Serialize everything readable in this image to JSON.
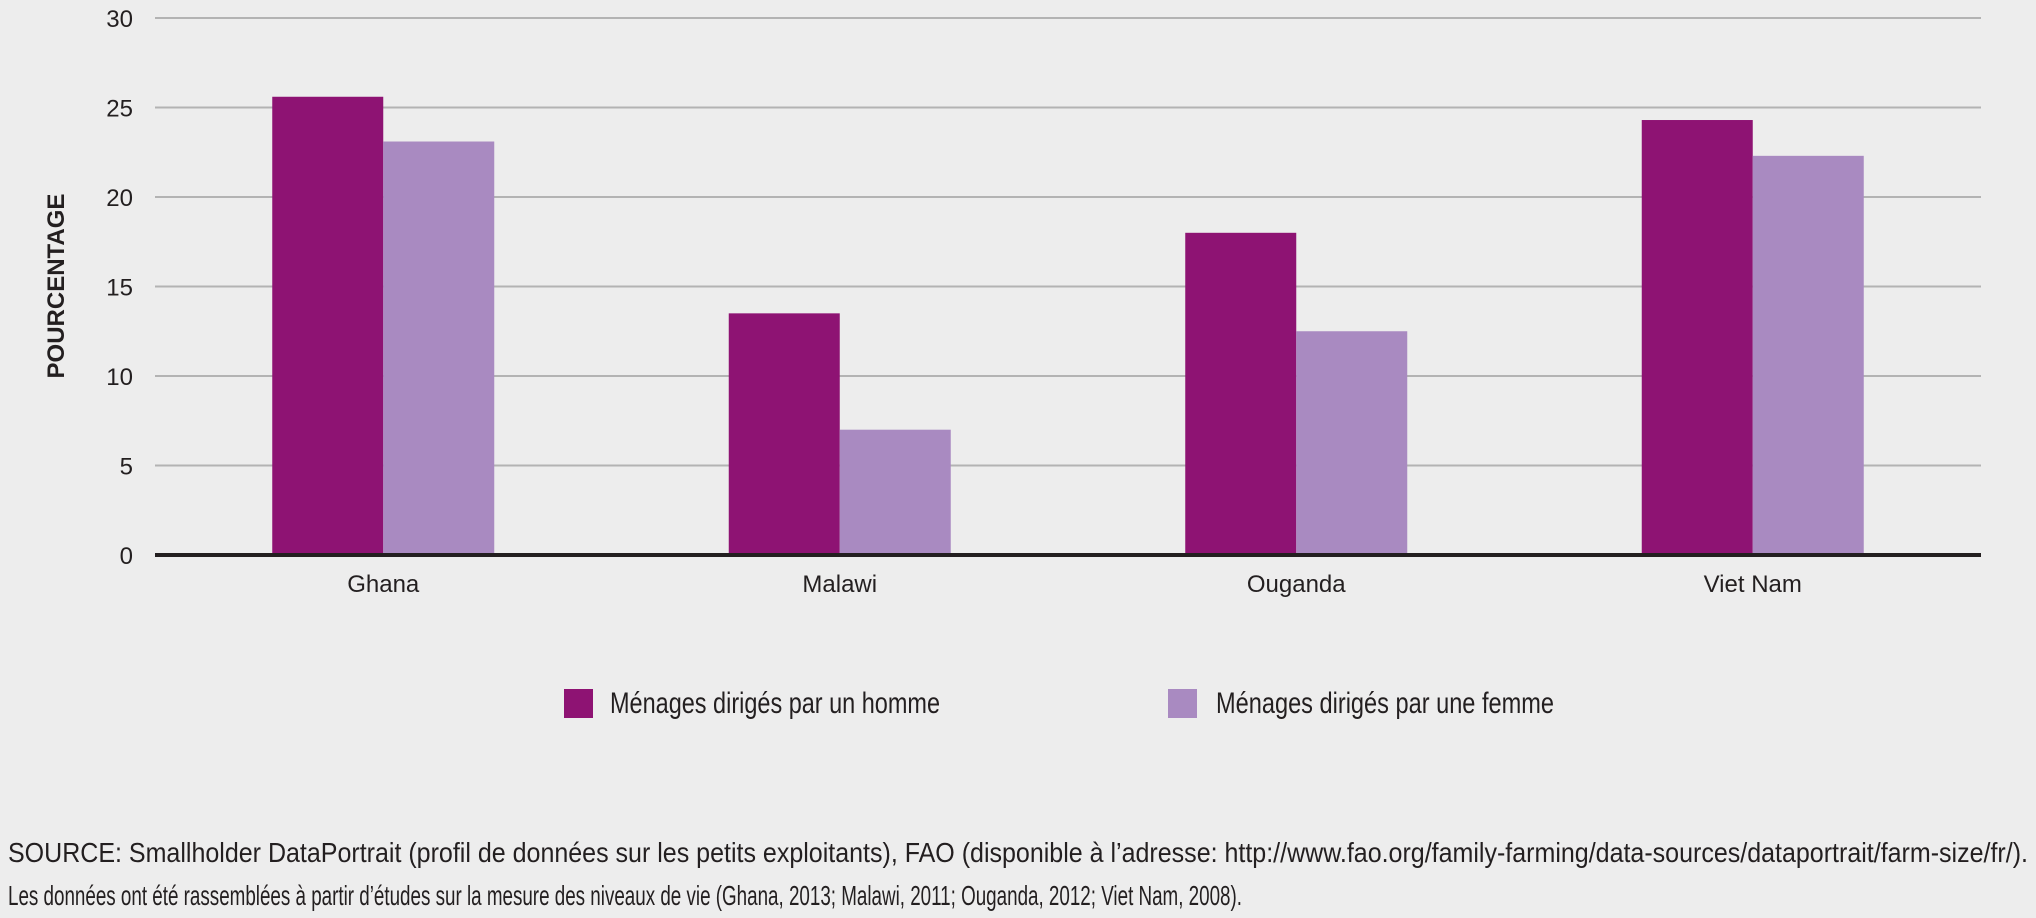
{
  "chart_data": {
    "type": "bar",
    "title": "",
    "xlabel": "",
    "ylabel": "POURCENTAGE",
    "ylim": [
      0,
      30
    ],
    "yticks": [
      0,
      5,
      10,
      15,
      20,
      25,
      30
    ],
    "grid": true,
    "legend_position": "bottom-center",
    "categories": [
      "Ghana",
      "Malawi",
      "Ouganda",
      "Viet Nam"
    ],
    "series": [
      {
        "name": "Ménages dirigés par un homme",
        "color": "#8e1373",
        "values": [
          25.6,
          13.5,
          18.0,
          24.3
        ]
      },
      {
        "name": "Ménages dirigés par une femme",
        "color": "#a98ac1",
        "values": [
          23.1,
          7.0,
          12.5,
          22.3
        ]
      }
    ]
  },
  "source": {
    "line1": "SOURCE: Smallholder DataPortrait (profil de données sur les petits exploitants), FAO (disponible à l’adresse: http://www.fao.org/family-farming/data-sources/dataportrait/farm-size/fr/).",
    "line2": "Les données ont été rassemblées à partir d’études sur la mesure des niveaux de vie (Ghana, 2013; Malawi, 2011; Ouganda, 2012; Viet Nam, 2008)."
  }
}
